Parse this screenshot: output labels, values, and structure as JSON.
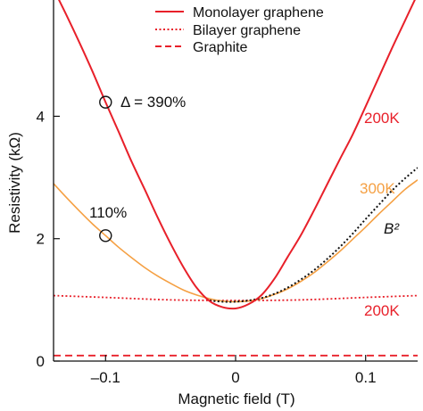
{
  "chart_data": {
    "type": "line",
    "xlabel": "Magnetic field (T)",
    "ylabel": "Resistivity (kΩ)",
    "xlim": [
      -0.14,
      0.14
    ],
    "ylim": [
      0,
      5.9
    ],
    "x_ticks": [
      -0.1,
      0,
      0.1
    ],
    "x_tick_labels": [
      "–0.1",
      "0",
      "0.1"
    ],
    "y_ticks": [
      0,
      2,
      4
    ],
    "y_tick_labels": [
      "0",
      "2",
      "4"
    ],
    "legend_position": "top-right",
    "grid": false,
    "colors": {
      "red": "#e8202a",
      "orange": "#f5a043",
      "fit": "#111111"
    },
    "series": [
      {
        "name": "Monolayer graphene",
        "style": "solid",
        "color": "#e8202a",
        "x": [
          -0.14,
          -0.13,
          -0.12,
          -0.11,
          -0.1,
          -0.09,
          -0.08,
          -0.07,
          -0.06,
          -0.05,
          -0.04,
          -0.03,
          -0.02,
          -0.01,
          0,
          0.01,
          0.02,
          0.03,
          0.04,
          0.05,
          0.06,
          0.07,
          0.08,
          0.09,
          0.1,
          0.11,
          0.12,
          0.13,
          0.14
        ],
        "y": [
          6.08,
          5.65,
          5.2,
          4.73,
          4.23,
          3.75,
          3.26,
          2.81,
          2.35,
          1.92,
          1.53,
          1.2,
          0.98,
          0.88,
          0.86,
          0.93,
          1.08,
          1.35,
          1.7,
          2.05,
          2.45,
          2.87,
          3.29,
          3.7,
          4.16,
          4.63,
          5.1,
          5.55,
          6.0
        ]
      },
      {
        "name": "Bilayer graphene",
        "style": "dotted",
        "color": "#e8202a",
        "x": [
          -0.14,
          -0.1,
          -0.05,
          0,
          0.05,
          0.1,
          0.14
        ],
        "y": [
          1.07,
          1.04,
          1.0,
          0.99,
          1.0,
          1.04,
          1.07
        ]
      },
      {
        "name": "Graphite",
        "style": "dashed",
        "color": "#e8202a",
        "x": [
          -0.14,
          0.14
        ],
        "y": [
          0.09,
          0.09
        ]
      },
      {
        "name": "",
        "style": "solid",
        "color": "#f5a043",
        "x": [
          -0.14,
          -0.13,
          -0.12,
          -0.11,
          -0.1,
          -0.09,
          -0.08,
          -0.07,
          -0.06,
          -0.05,
          -0.04,
          -0.03,
          -0.02,
          -0.01,
          0,
          0.01,
          0.02,
          0.03,
          0.04,
          0.05,
          0.06,
          0.07,
          0.08,
          0.09,
          0.1,
          0.11,
          0.12,
          0.13,
          0.14
        ],
        "y": [
          2.9,
          2.67,
          2.45,
          2.24,
          2.05,
          1.86,
          1.69,
          1.53,
          1.39,
          1.27,
          1.16,
          1.08,
          1.02,
          0.98,
          0.97,
          0.98,
          1.02,
          1.09,
          1.18,
          1.3,
          1.44,
          1.61,
          1.79,
          1.99,
          2.19,
          2.4,
          2.6,
          2.8,
          2.96
        ]
      },
      {
        "name": "",
        "style": "dotted",
        "color": "#111111",
        "x": [
          -0.02,
          -0.01,
          0,
          0.01,
          0.02,
          0.03,
          0.04,
          0.05,
          0.06,
          0.07,
          0.08,
          0.09,
          0.1,
          0.11,
          0.12,
          0.13,
          0.14
        ],
        "y": [
          0.99,
          0.97,
          0.97,
          0.99,
          1.03,
          1.1,
          1.2,
          1.33,
          1.48,
          1.66,
          1.86,
          2.08,
          2.32,
          2.55,
          2.78,
          2.98,
          3.16
        ]
      }
    ],
    "legend": [
      {
        "label": "Monolayer graphene",
        "style": "solid"
      },
      {
        "label": "Bilayer graphene",
        "style": "dotted"
      },
      {
        "label": "Graphite",
        "style": "dashed"
      }
    ],
    "annotations": {
      "delta_390": {
        "text": "Δ = 390%",
        "x": -0.1,
        "y": 4.23
      },
      "pct_110": {
        "text": "110%",
        "x": -0.1,
        "y": 2.05
      },
      "label_200k_top": {
        "text": "200K",
        "color": "#e8202a"
      },
      "label_300k": {
        "text": "300K",
        "color": "#f5a043"
      },
      "label_b2": {
        "text": "B²"
      },
      "label_200k_bottom": {
        "text": "200K",
        "color": "#e8202a"
      }
    }
  }
}
